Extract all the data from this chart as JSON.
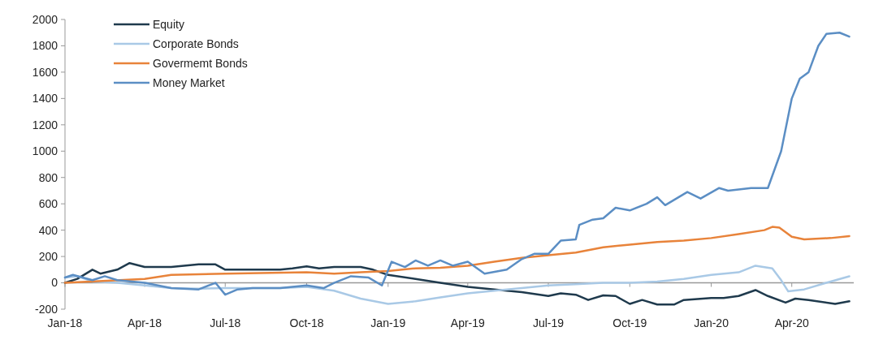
{
  "chart_data": {
    "type": "line",
    "legend": "top left",
    "marker": "none",
    "line_style": "solid",
    "ylim": [
      -200,
      2000
    ],
    "yticks": [
      -200,
      0,
      200,
      400,
      600,
      800,
      1000,
      1200,
      1400,
      1600,
      1800,
      2000
    ],
    "xlim": [
      "2018-01-01",
      "2020-06-10"
    ],
    "xticks": [
      {
        "value": "2018-01-01",
        "label": "Jan-18"
      },
      {
        "value": "2018-04-01",
        "label": "Apr-18"
      },
      {
        "value": "2018-07-01",
        "label": "Jul-18"
      },
      {
        "value": "2018-10-01",
        "label": "Oct-18"
      },
      {
        "value": "2019-01-01",
        "label": "Jan-19"
      },
      {
        "value": "2019-04-01",
        "label": "Apr-19"
      },
      {
        "value": "2019-07-01",
        "label": "Jul-19"
      },
      {
        "value": "2019-10-01",
        "label": "Oct-19"
      },
      {
        "value": "2020-01-01",
        "label": "Jan-20"
      },
      {
        "value": "2020-04-01",
        "label": "Apr-20"
      }
    ],
    "series": [
      {
        "name": "Equity",
        "color": "#1f3a4d",
        "x": [
          "2018-01-01",
          "2018-01-15",
          "2018-02-01",
          "2018-02-10",
          "2018-03-01",
          "2018-03-15",
          "2018-04-01",
          "2018-05-01",
          "2018-06-01",
          "2018-06-20",
          "2018-07-01",
          "2018-08-01",
          "2018-09-01",
          "2018-09-15",
          "2018-10-01",
          "2018-10-15",
          "2018-11-01",
          "2018-12-01",
          "2018-12-15",
          "2019-01-01",
          "2019-02-01",
          "2019-03-01",
          "2019-04-01",
          "2019-05-01",
          "2019-06-01",
          "2019-07-01",
          "2019-07-15",
          "2019-08-01",
          "2019-08-15",
          "2019-09-01",
          "2019-09-15",
          "2019-10-01",
          "2019-10-15",
          "2019-11-01",
          "2019-11-20",
          "2019-12-01",
          "2020-01-01",
          "2020-01-15",
          "2020-02-01",
          "2020-02-20",
          "2020-03-05",
          "2020-03-25",
          "2020-04-05",
          "2020-04-20",
          "2020-05-20",
          "2020-06-05"
        ],
        "values": [
          0,
          30,
          100,
          70,
          100,
          150,
          120,
          120,
          140,
          140,
          100,
          100,
          100,
          110,
          125,
          110,
          120,
          120,
          100,
          60,
          30,
          0,
          -30,
          -50,
          -70,
          -100,
          -80,
          -90,
          -130,
          -95,
          -100,
          -160,
          -130,
          -165,
          -165,
          -130,
          -115,
          -115,
          -100,
          -55,
          -100,
          -150,
          -120,
          -130,
          -160,
          -140
        ]
      },
      {
        "name": "Corporate Bonds",
        "color": "#a9c9e6",
        "x": [
          "2018-01-01",
          "2018-01-15",
          "2018-02-01",
          "2018-03-01",
          "2018-04-01",
          "2018-05-01",
          "2018-06-01",
          "2018-07-01",
          "2018-08-01",
          "2018-09-01",
          "2018-10-01",
          "2018-11-01",
          "2018-12-01",
          "2019-01-01",
          "2019-02-01",
          "2019-03-01",
          "2019-04-01",
          "2019-05-01",
          "2019-06-01",
          "2019-07-01",
          "2019-08-01",
          "2019-09-01",
          "2019-10-01",
          "2019-11-01",
          "2019-12-01",
          "2020-01-01",
          "2020-02-01",
          "2020-02-20",
          "2020-03-10",
          "2020-03-20",
          "2020-03-28",
          "2020-04-15",
          "2020-05-10",
          "2020-06-05"
        ],
        "values": [
          40,
          50,
          10,
          0,
          -20,
          -40,
          -45,
          -40,
          -40,
          -40,
          -30,
          -60,
          -120,
          -160,
          -140,
          -110,
          -80,
          -60,
          -40,
          -20,
          -10,
          0,
          0,
          10,
          30,
          60,
          80,
          130,
          110,
          20,
          -65,
          -50,
          0,
          50
        ]
      },
      {
        "name": "Govermemt Bonds",
        "color": "#e8833a",
        "x": [
          "2018-01-01",
          "2018-04-01",
          "2018-05-01",
          "2018-07-01",
          "2018-10-01",
          "2018-11-01",
          "2018-12-01",
          "2019-01-01",
          "2019-02-01",
          "2019-03-01",
          "2019-04-01",
          "2019-05-01",
          "2019-06-01",
          "2019-07-01",
          "2019-08-01",
          "2019-09-01",
          "2019-10-01",
          "2019-11-01",
          "2019-12-01",
          "2020-01-01",
          "2020-02-01",
          "2020-03-01",
          "2020-03-10",
          "2020-03-18",
          "2020-04-01",
          "2020-04-15",
          "2020-05-15",
          "2020-06-05"
        ],
        "values": [
          0,
          30,
          60,
          70,
          80,
          70,
          80,
          90,
          110,
          115,
          130,
          160,
          190,
          210,
          230,
          270,
          290,
          310,
          320,
          340,
          370,
          400,
          425,
          420,
          350,
          330,
          340,
          355
        ]
      },
      {
        "name": "Money Market",
        "color": "#5b8ec4",
        "x": [
          "2018-01-01",
          "2018-01-10",
          "2018-02-01",
          "2018-02-15",
          "2018-03-01",
          "2018-04-01",
          "2018-05-01",
          "2018-06-01",
          "2018-06-20",
          "2018-07-01",
          "2018-07-15",
          "2018-08-01",
          "2018-09-01",
          "2018-10-01",
          "2018-10-20",
          "2018-11-01",
          "2018-11-20",
          "2018-12-10",
          "2018-12-25",
          "2019-01-05",
          "2019-01-20",
          "2019-02-01",
          "2019-02-15",
          "2019-03-01",
          "2019-03-15",
          "2019-04-01",
          "2019-04-20",
          "2019-05-15",
          "2019-06-01",
          "2019-06-15",
          "2019-07-01",
          "2019-07-15",
          "2019-08-01",
          "2019-08-05",
          "2019-08-20",
          "2019-09-01",
          "2019-09-15",
          "2019-10-01",
          "2019-10-20",
          "2019-11-01",
          "2019-11-10",
          "2019-12-05",
          "2019-12-20",
          "2020-01-10",
          "2020-01-20",
          "2020-02-15",
          "2020-03-05",
          "2020-03-20",
          "2020-04-01",
          "2020-04-10",
          "2020-04-20",
          "2020-05-01",
          "2020-05-10",
          "2020-05-25",
          "2020-06-05"
        ],
        "values": [
          40,
          60,
          20,
          50,
          20,
          0,
          -40,
          -50,
          0,
          -90,
          -50,
          -40,
          -40,
          -20,
          -40,
          0,
          50,
          40,
          -20,
          160,
          120,
          170,
          130,
          170,
          130,
          160,
          70,
          100,
          180,
          220,
          220,
          320,
          330,
          440,
          480,
          490,
          570,
          550,
          600,
          650,
          590,
          690,
          640,
          720,
          700,
          720,
          720,
          1000,
          1400,
          1550,
          1600,
          1800,
          1890,
          1900,
          1870
        ]
      }
    ]
  }
}
